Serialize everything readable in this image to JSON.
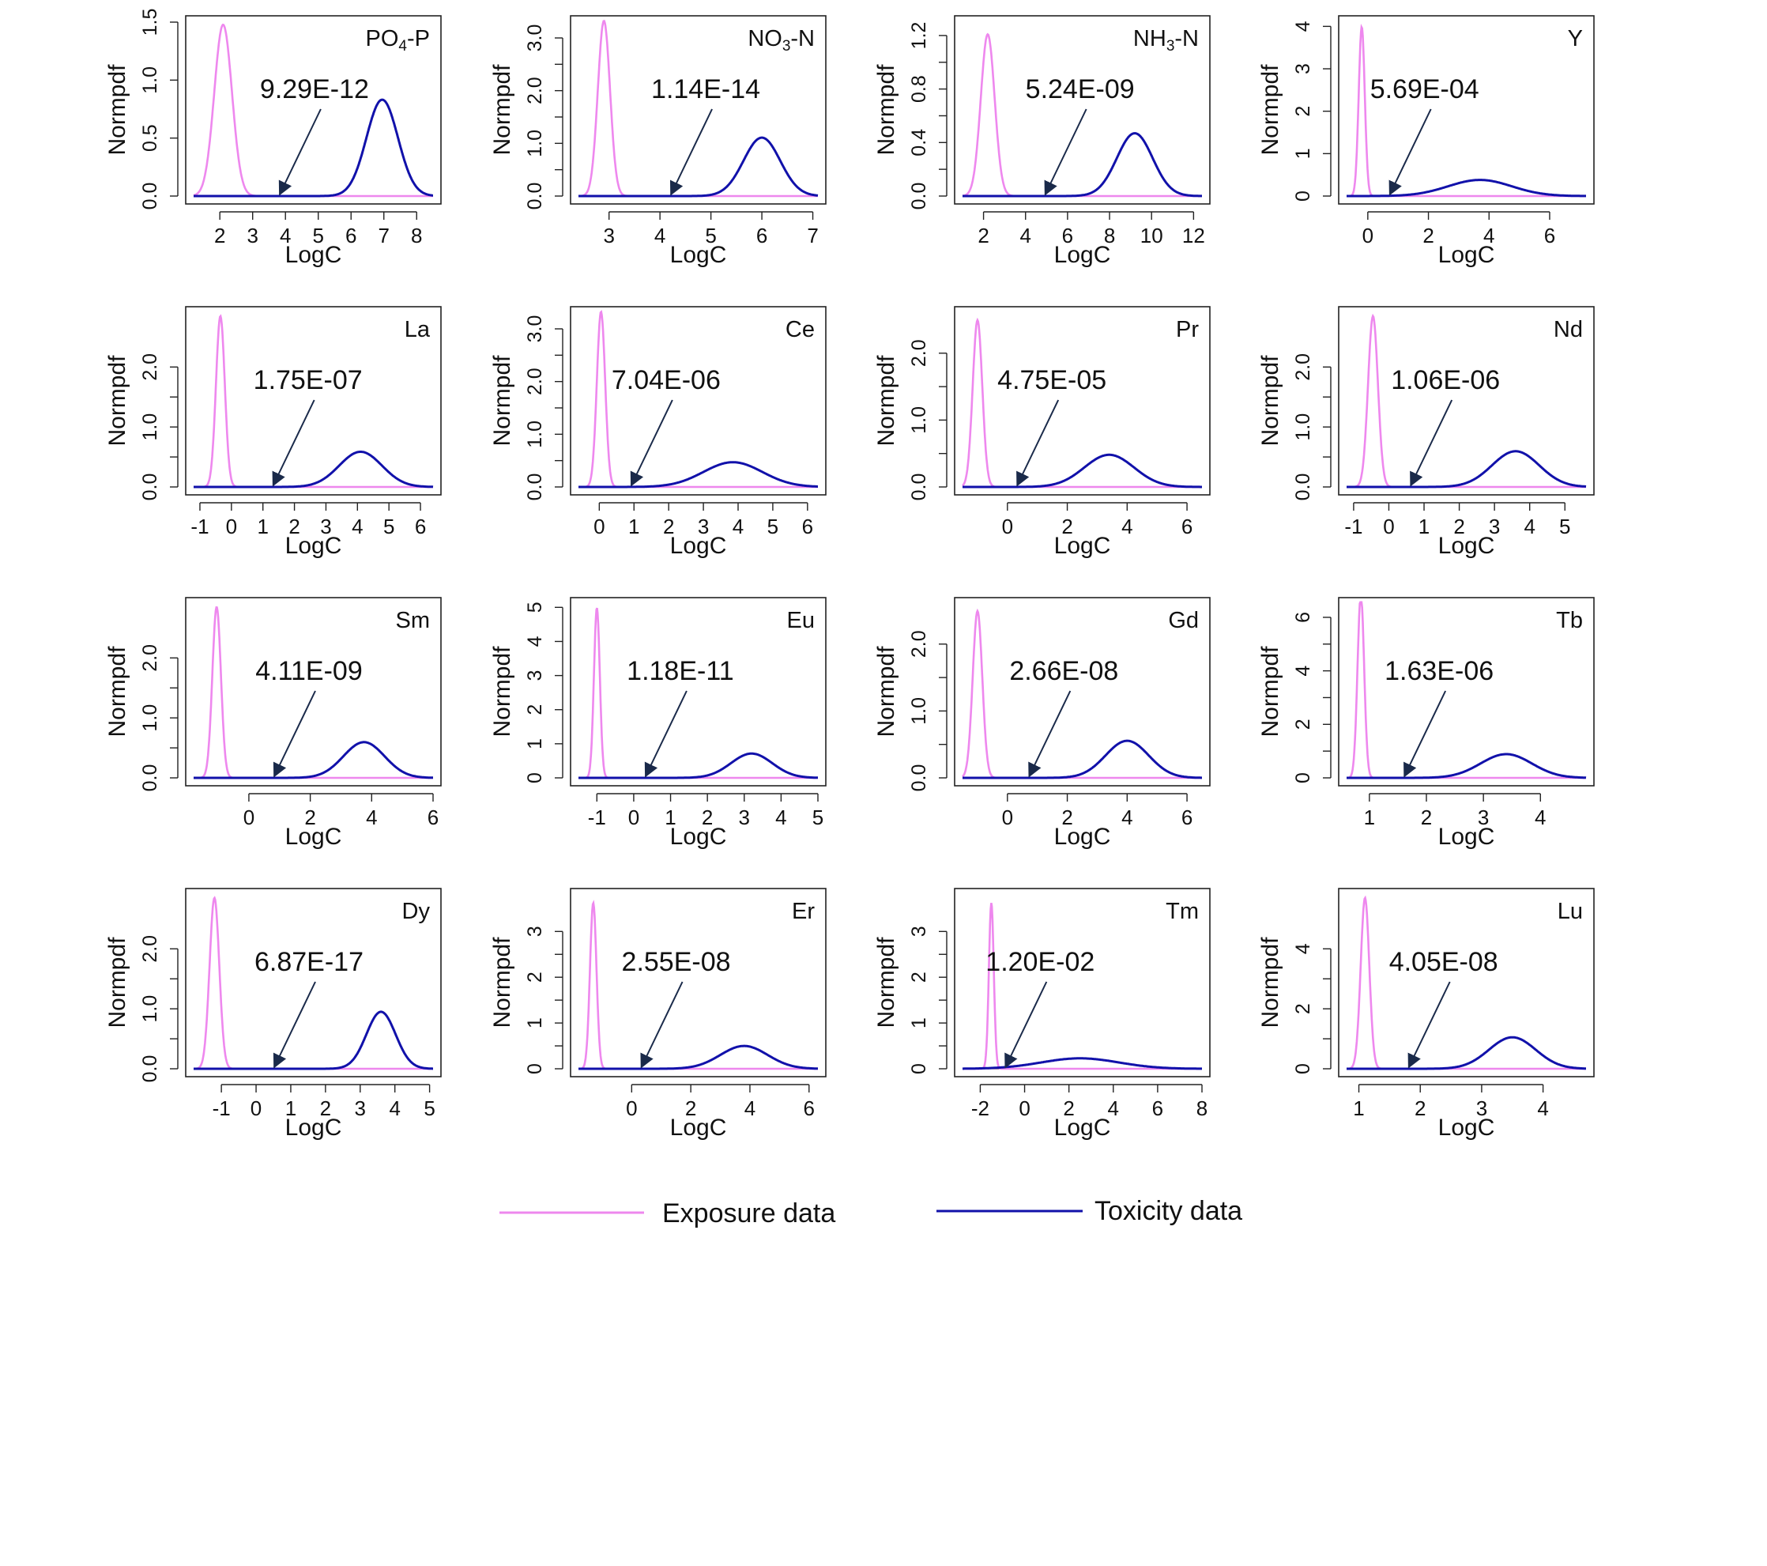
{
  "figure": {
    "exposure_color": "#ee88ee",
    "toxicity_color": "#1111aa",
    "arrow_color": "#1a2a4a",
    "frame_color": "#222222",
    "legend": {
      "exposure_label": "Exposure data",
      "toxicity_label": "Toxicity data"
    }
  },
  "chart_data": [
    {
      "type": "line",
      "panel": "PO4-P",
      "title": "PO4-P",
      "title_main": "PO",
      "title_sub": "4",
      "title_rest": "-P",
      "xlabel": "LogC",
      "ylabel": "Normpdf",
      "annotation": "9.29E-12",
      "arrow_x": 3.8,
      "xlim": [
        1.2,
        8.5
      ],
      "ylim": [
        0,
        1.5
      ],
      "xticks": [
        2,
        3,
        4,
        5,
        6,
        7,
        8
      ],
      "yticks": [
        0.0,
        0.5,
        1.0,
        1.5
      ],
      "ytick_labels": [
        "0.0",
        "0.5",
        "1.0",
        "1.5"
      ],
      "y_minor": false,
      "series": [
        {
          "name": "Exposure data",
          "dist": {
            "mean": 2.1,
            "sd": 0.27
          }
        },
        {
          "name": "Toxicity data",
          "dist": {
            "mean": 6.95,
            "sd": 0.48
          }
        }
      ]
    },
    {
      "type": "line",
      "panel": "NO3-N",
      "title": "NO3-N",
      "title_main": "NO",
      "title_sub": "3",
      "title_rest": "-N",
      "xlabel": "LogC",
      "ylabel": "Normpdf",
      "annotation": "1.14E-14",
      "arrow_x": 4.2,
      "xlim": [
        2.4,
        7.1
      ],
      "ylim": [
        0,
        3.3
      ],
      "xticks": [
        3,
        4,
        5,
        6,
        7
      ],
      "yticks": [
        0.0,
        1.0,
        2.0,
        3.0
      ],
      "ytick_labels": [
        "0.0",
        "1.0",
        "2.0",
        "3.0"
      ],
      "y_minor": true,
      "series": [
        {
          "name": "Exposure data",
          "dist": {
            "mean": 2.9,
            "sd": 0.12
          }
        },
        {
          "name": "Toxicity data",
          "dist": {
            "mean": 6.0,
            "sd": 0.36
          }
        }
      ]
    },
    {
      "type": "line",
      "panel": "NH3-N",
      "title": "NH3-N",
      "title_main": "NH",
      "title_sub": "3",
      "title_rest": "-N",
      "xlabel": "LogC",
      "ylabel": "Normpdf",
      "annotation": "5.24E-09",
      "arrow_x": 4.9,
      "xlim": [
        1.0,
        12.4
      ],
      "ylim": [
        0,
        1.3
      ],
      "xticks": [
        2,
        4,
        6,
        8,
        10,
        12
      ],
      "yticks": [
        0.0,
        0.4,
        0.8,
        1.2
      ],
      "ytick_labels": [
        "0.0",
        "0.4",
        "0.8",
        "1.2"
      ],
      "y_minor": true,
      "series": [
        {
          "name": "Exposure data",
          "dist": {
            "mean": 2.2,
            "sd": 0.33
          }
        },
        {
          "name": "Toxicity data",
          "dist": {
            "mean": 9.2,
            "sd": 0.85
          }
        }
      ]
    },
    {
      "type": "line",
      "panel": "Y",
      "title": "Y",
      "xlabel": "LogC",
      "ylabel": "Normpdf",
      "annotation": "5.69E-04",
      "arrow_x": 0.7,
      "xlim": [
        -0.7,
        7.2
      ],
      "ylim": [
        0,
        4.1
      ],
      "xticks": [
        0,
        2,
        4,
        6
      ],
      "yticks": [
        0,
        1,
        2,
        3,
        4
      ],
      "ytick_labels": [
        "0",
        "1",
        "2",
        "3",
        "4"
      ],
      "y_minor": false,
      "series": [
        {
          "name": "Exposure data",
          "dist": {
            "mean": -0.2,
            "sd": 0.1
          }
        },
        {
          "name": "Toxicity data",
          "dist": {
            "mean": 3.7,
            "sd": 1.05
          }
        }
      ]
    },
    {
      "type": "line",
      "panel": "La",
      "title": "La",
      "xlabel": "LogC",
      "ylabel": "Normpdf",
      "annotation": "1.75E-07",
      "arrow_x": 1.3,
      "xlim": [
        -1.2,
        6.4
      ],
      "ylim": [
        0,
        2.9
      ],
      "xticks": [
        -1,
        0,
        1,
        2,
        3,
        4,
        5,
        6
      ],
      "yticks": [
        0.0,
        1.0,
        2.0
      ],
      "ytick_labels": [
        "0.0",
        "1.0",
        "2.0"
      ],
      "y_minor": true,
      "series": [
        {
          "name": "Exposure data",
          "dist": {
            "mean": -0.35,
            "sd": 0.14
          }
        },
        {
          "name": "Toxicity data",
          "dist": {
            "mean": 4.1,
            "sd": 0.68
          }
        }
      ]
    },
    {
      "type": "line",
      "panel": "Ce",
      "title": "Ce",
      "xlabel": "LogC",
      "ylabel": "Normpdf",
      "annotation": "7.04E-06",
      "arrow_x": 0.9,
      "xlim": [
        -0.6,
        6.3
      ],
      "ylim": [
        0,
        3.3
      ],
      "xticks": [
        0,
        1,
        2,
        3,
        4,
        5,
        6
      ],
      "yticks": [
        0.0,
        1.0,
        2.0,
        3.0
      ],
      "ytick_labels": [
        "0.0",
        "1.0",
        "2.0",
        "3.0"
      ],
      "y_minor": true,
      "series": [
        {
          "name": "Exposure data",
          "dist": {
            "mean": 0.05,
            "sd": 0.12
          }
        },
        {
          "name": "Toxicity data",
          "dist": {
            "mean": 3.85,
            "sd": 0.85
          }
        }
      ]
    },
    {
      "type": "line",
      "panel": "Pr",
      "title": "Pr",
      "xlabel": "LogC",
      "ylabel": "Normpdf",
      "annotation": "4.75E-05",
      "arrow_x": 0.3,
      "xlim": [
        -1.5,
        6.5
      ],
      "ylim": [
        0,
        2.6
      ],
      "xticks": [
        0,
        2,
        4,
        6
      ],
      "yticks": [
        0.0,
        1.0,
        2.0
      ],
      "ytick_labels": [
        "0.0",
        "1.0",
        "2.0"
      ],
      "y_minor": true,
      "series": [
        {
          "name": "Exposure data",
          "dist": {
            "mean": -1.0,
            "sd": 0.16
          }
        },
        {
          "name": "Toxicity data",
          "dist": {
            "mean": 3.4,
            "sd": 0.83
          }
        }
      ]
    },
    {
      "type": "line",
      "panel": "Nd",
      "title": "Nd",
      "xlabel": "LogC",
      "ylabel": "Normpdf",
      "annotation": "1.06E-06",
      "arrow_x": 0.6,
      "xlim": [
        -1.2,
        5.6
      ],
      "ylim": [
        0,
        2.9
      ],
      "xticks": [
        -1,
        0,
        1,
        2,
        3,
        4,
        5
      ],
      "yticks": [
        0.0,
        1.0,
        2.0
      ],
      "ytick_labels": [
        "0.0",
        "1.0",
        "2.0"
      ],
      "y_minor": true,
      "series": [
        {
          "name": "Exposure data",
          "dist": {
            "mean": -0.45,
            "sd": 0.14
          }
        },
        {
          "name": "Toxicity data",
          "dist": {
            "mean": 3.6,
            "sd": 0.67
          }
        }
      ]
    },
    {
      "type": "line",
      "panel": "Sm",
      "title": "Sm",
      "xlabel": "LogC",
      "ylabel": "Normpdf",
      "annotation": "4.11E-09",
      "arrow_x": 0.8,
      "xlim": [
        -1.8,
        6.0
      ],
      "ylim": [
        0,
        2.9
      ],
      "xticks": [
        0,
        2,
        4,
        6
      ],
      "yticks": [
        0.0,
        1.0,
        2.0
      ],
      "ytick_labels": [
        "0.0",
        "1.0",
        "2.0"
      ],
      "y_minor": true,
      "series": [
        {
          "name": "Exposure data",
          "dist": {
            "mean": -1.05,
            "sd": 0.14
          }
        },
        {
          "name": "Toxicity data",
          "dist": {
            "mean": 3.75,
            "sd": 0.67
          }
        }
      ]
    },
    {
      "type": "line",
      "panel": "Eu",
      "title": "Eu",
      "xlabel": "LogC",
      "ylabel": "Normpdf",
      "annotation": "1.18E-11",
      "arrow_x": 0.3,
      "xlim": [
        -1.5,
        5.0
      ],
      "ylim": [
        0,
        5.1
      ],
      "xticks": [
        -1,
        0,
        1,
        2,
        3,
        4,
        5
      ],
      "yticks": [
        0,
        1,
        2,
        3,
        4,
        5
      ],
      "ytick_labels": [
        "0",
        "1",
        "2",
        "3",
        "4",
        "5"
      ],
      "y_minor": false,
      "series": [
        {
          "name": "Exposure data",
          "dist": {
            "mean": -1.0,
            "sd": 0.08
          }
        },
        {
          "name": "Toxicity data",
          "dist": {
            "mean": 3.2,
            "sd": 0.56
          }
        }
      ]
    },
    {
      "type": "line",
      "panel": "Gd",
      "title": "Gd",
      "xlabel": "LogC",
      "ylabel": "Normpdf",
      "annotation": "2.66E-08",
      "arrow_x": 0.7,
      "xlim": [
        -1.5,
        6.5
      ],
      "ylim": [
        0,
        2.6
      ],
      "xticks": [
        0,
        2,
        4,
        6
      ],
      "yticks": [
        0.0,
        1.0,
        2.0
      ],
      "ytick_labels": [
        "0.0",
        "1.0",
        "2.0"
      ],
      "y_minor": true,
      "series": [
        {
          "name": "Exposure data",
          "dist": {
            "mean": -1.0,
            "sd": 0.16
          }
        },
        {
          "name": "Toxicity data",
          "dist": {
            "mean": 4.0,
            "sd": 0.72
          }
        }
      ]
    },
    {
      "type": "line",
      "panel": "Tb",
      "title": "Tb",
      "xlabel": "LogC",
      "ylabel": "Normpdf",
      "annotation": "1.63E-06",
      "arrow_x": 1.6,
      "xlim": [
        0.6,
        4.8
      ],
      "ylim": [
        0,
        6.5
      ],
      "xticks": [
        1,
        2,
        3,
        4
      ],
      "yticks": [
        0,
        2,
        4,
        6
      ],
      "ytick_labels": [
        "0",
        "2",
        "4",
        "6"
      ],
      "y_minor": true,
      "series": [
        {
          "name": "Exposure data",
          "dist": {
            "mean": 0.85,
            "sd": 0.058
          }
        },
        {
          "name": "Toxicity data",
          "dist": {
            "mean": 3.4,
            "sd": 0.45
          }
        }
      ]
    },
    {
      "type": "line",
      "panel": "Dy",
      "title": "Dy",
      "xlabel": "LogC",
      "ylabel": "Normpdf",
      "annotation": "6.87E-17",
      "arrow_x": 0.5,
      "xlim": [
        -1.8,
        5.1
      ],
      "ylim": [
        0,
        2.9
      ],
      "xticks": [
        -1,
        0,
        1,
        2,
        3,
        4,
        5
      ],
      "yticks": [
        0.0,
        1.0,
        2.0
      ],
      "ytick_labels": [
        "0.0",
        "1.0",
        "2.0"
      ],
      "y_minor": true,
      "series": [
        {
          "name": "Exposure data",
          "dist": {
            "mean": -1.2,
            "sd": 0.14
          }
        },
        {
          "name": "Toxicity data",
          "dist": {
            "mean": 3.6,
            "sd": 0.42
          }
        }
      ]
    },
    {
      "type": "line",
      "panel": "Er",
      "title": "Er",
      "xlabel": "LogC",
      "ylabel": "Normpdf",
      "annotation": "2.55E-08",
      "arrow_x": 0.3,
      "xlim": [
        -1.8,
        6.3
      ],
      "ylim": [
        0,
        3.8
      ],
      "xticks": [
        0,
        2,
        4,
        6
      ],
      "yticks": [
        0,
        1,
        2,
        3
      ],
      "ytick_labels": [
        "0",
        "1",
        "2",
        "3"
      ],
      "y_minor": true,
      "series": [
        {
          "name": "Exposure data",
          "dist": {
            "mean": -1.3,
            "sd": 0.11
          }
        },
        {
          "name": "Toxicity data",
          "dist": {
            "mean": 3.8,
            "sd": 0.8
          }
        }
      ]
    },
    {
      "type": "line",
      "panel": "Tm",
      "title": "Tm",
      "xlabel": "LogC",
      "ylabel": "Normpdf",
      "annotation": "1.20E-02",
      "arrow_x": -0.9,
      "xlim": [
        -2.8,
        8.0
      ],
      "ylim": [
        0,
        3.8
      ],
      "xticks": [
        -2,
        0,
        2,
        4,
        6,
        8
      ],
      "yticks": [
        0,
        1,
        2,
        3
      ],
      "ytick_labels": [
        "0",
        "1",
        "2",
        "3"
      ],
      "y_minor": true,
      "series": [
        {
          "name": "Exposure data",
          "dist": {
            "mean": -1.5,
            "sd": 0.11
          }
        },
        {
          "name": "Toxicity data",
          "dist": {
            "mean": 2.5,
            "sd": 1.75
          }
        }
      ]
    },
    {
      "type": "line",
      "panel": "Lu",
      "title": "Lu",
      "xlabel": "LogC",
      "ylabel": "Normpdf",
      "annotation": "4.05E-08",
      "arrow_x": 1.8,
      "xlim": [
        0.8,
        4.7
      ],
      "ylim": [
        0,
        5.8
      ],
      "xticks": [
        1,
        2,
        3,
        4
      ],
      "yticks": [
        0,
        2,
        4
      ],
      "ytick_labels": [
        "0",
        "2",
        "4"
      ],
      "y_minor": true,
      "series": [
        {
          "name": "Exposure data",
          "dist": {
            "mean": 1.1,
            "sd": 0.07
          }
        },
        {
          "name": "Toxicity data",
          "dist": {
            "mean": 3.5,
            "sd": 0.38
          }
        }
      ]
    }
  ]
}
